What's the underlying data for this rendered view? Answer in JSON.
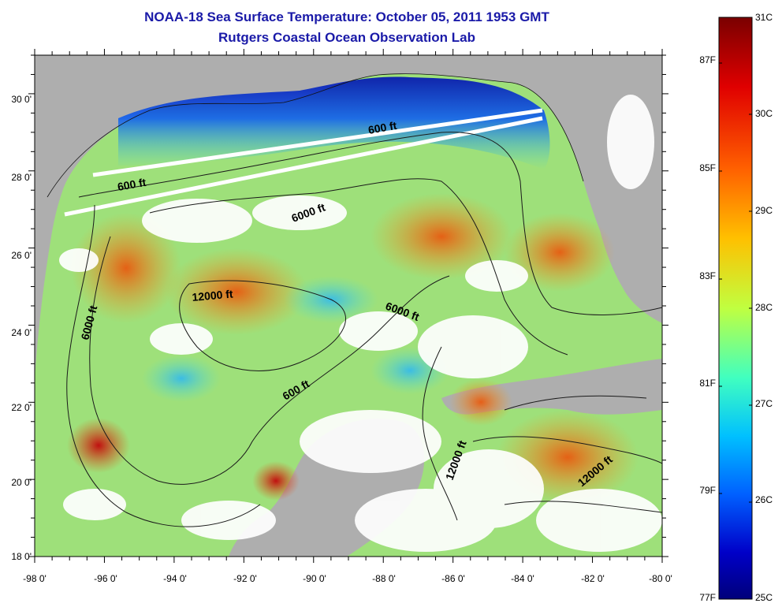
{
  "title": "NOAA-18 Sea Surface Temperature:  October 05, 2011 1953 GMT",
  "subtitle": "Rutgers Coastal Ocean Observation Lab",
  "map": {
    "lon_ticks": [
      "-98 0'",
      "-96 0'",
      "-94 0'",
      "-92 0'",
      "-90 0'",
      "-88 0'",
      "-86 0'",
      "-84 0'",
      "-82 0'",
      "-80 0'"
    ],
    "lat_ticks": [
      "30 0'",
      "28 0'",
      "26 0'",
      "24 0'",
      "22 0'",
      "20 0'",
      "18 0'"
    ],
    "contour_labels": [
      "600 ft",
      "600 ft",
      "6000 ft",
      "12000 ft",
      "6000 ft",
      "6000 ft",
      "600 ft",
      "12000 ft",
      "12000 ft"
    ]
  },
  "colorbar": {
    "celsius": [
      "31C",
      "30C",
      "29C",
      "28C",
      "27C",
      "26C",
      "25C"
    ],
    "fahrenheit": [
      "87F",
      "85F",
      "83F",
      "81F",
      "79F",
      "77F"
    ],
    "colors": [
      "#7a0000",
      "#e00000",
      "#ff6000",
      "#ffc000",
      "#c0ff40",
      "#40ffc0",
      "#00c0ff",
      "#0060ff",
      "#0000c8",
      "#00007a"
    ]
  }
}
